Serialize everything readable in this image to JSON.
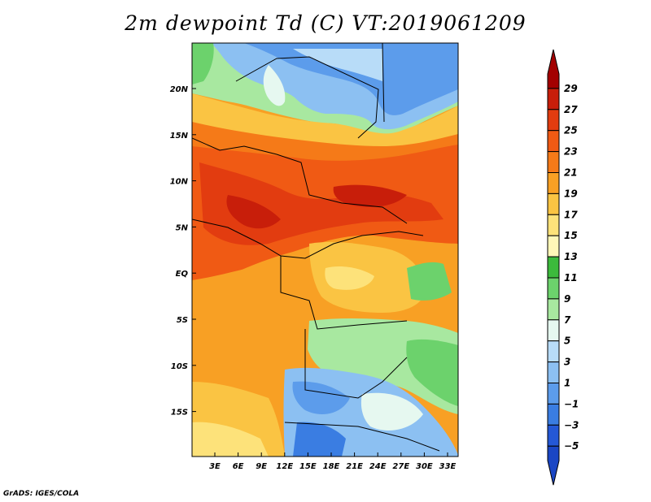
{
  "title": "2m dewpoint Td (C) VT:2019061209",
  "footer": "GrADS: IGES/COLA",
  "map": {
    "variable": "2m dewpoint",
    "units": "C",
    "valid_time": "2019061209",
    "lon_labels": [
      "3E",
      "6E",
      "9E",
      "12E",
      "15E",
      "18E",
      "21E",
      "24E",
      "27E",
      "30E",
      "33E"
    ],
    "lat_labels": [
      "20N",
      "15N",
      "10N",
      "5N",
      "EQ",
      "5S",
      "10S",
      "15S"
    ]
  },
  "colorbar": {
    "labels": [
      "29",
      "27",
      "25",
      "23",
      "21",
      "19",
      "17",
      "15",
      "13",
      "11",
      "9",
      "7",
      "5",
      "3",
      "1",
      "−1",
      "−3",
      "−5"
    ],
    "colors": [
      "#a30000",
      "#c81e0a",
      "#e23c10",
      "#f05a14",
      "#f57a18",
      "#f8a024",
      "#fac443",
      "#fde27a",
      "#fff7b8",
      "#3cba3c",
      "#6cd26c",
      "#a8e8a0",
      "#e6f8f0",
      "#b8dcf8",
      "#8cc0f2",
      "#5c9ceb",
      "#3a7de2",
      "#2458d6",
      "#1a46c4"
    ]
  }
}
